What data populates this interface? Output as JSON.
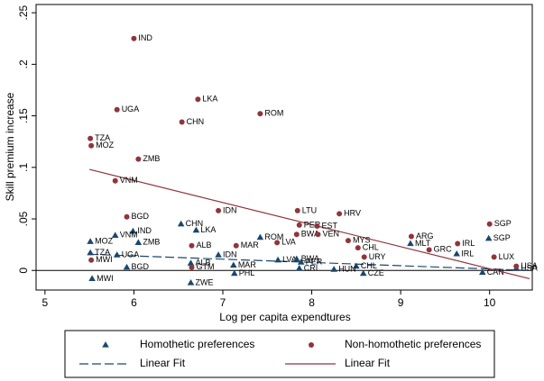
{
  "chart_data": {
    "type": "scatter",
    "x_label": "Log per capita expendtures",
    "y_label": "Skill premium increase",
    "xlim": [
      4.9,
      10.48
    ],
    "ylim": [
      -0.019,
      0.258
    ],
    "xticks": [
      5,
      6,
      7,
      8,
      9,
      10
    ],
    "yticks": [
      0,
      {
        "value": 0.05,
        "label": ".05"
      },
      {
        "value": 0.1,
        "label": ".1"
      },
      {
        "value": 0.15,
        "label": ".15"
      },
      {
        "value": 0.2,
        "label": ".2"
      },
      {
        "value": 0.25,
        "label": ".25"
      }
    ],
    "grid": false,
    "series": [
      {
        "name": "Homothetic preferences",
        "color": "#1a476f",
        "marker": "triangle",
        "x": [
          6.53,
          6.7,
          5.99,
          5.79,
          7.42,
          9.99,
          5.51,
          6.05,
          9.11,
          5.51,
          9.63,
          5.81,
          6.95,
          7.62,
          7.83,
          7.88,
          6.64,
          7.12,
          8.5,
          5.92,
          7.86,
          8.25,
          7.13,
          8.58,
          9.92,
          5.53,
          6.64,
          10.3
        ],
        "values": [
          0.045,
          0.039,
          0.038,
          0.034,
          0.032,
          0.031,
          0.028,
          0.027,
          0.026,
          0.017,
          0.016,
          0.015,
          0.015,
          0.01,
          0.011,
          0.008,
          0.007,
          0.005,
          0.004,
          0.003,
          0.002,
          0.001,
          -0.003,
          -0.003,
          -0.002,
          -0.008,
          -0.012,
          0.002
        ],
        "point_labels": [
          "CHN",
          "LKA",
          "IND",
          "VNM",
          "ROM",
          "SGP",
          "MOZ",
          "ZMB",
          "MLT",
          "TZA",
          "IRL",
          "UGA",
          "IDN",
          "LVA",
          "BWA",
          "PER",
          "ALB",
          "MAR",
          "CHL",
          "BGD",
          "CRI",
          "HUN",
          "PHL",
          "CZE",
          "CAN",
          "MWI",
          "ZWE",
          "USA"
        ],
        "fit": {
          "name": "Linear Fit",
          "dash": true,
          "x": [
            5.5,
            10.45
          ],
          "values": [
            0.0157,
            0.0
          ]
        }
      },
      {
        "name": "Non-homothetic preferences",
        "color": "#90353b",
        "marker": "circle",
        "x": [
          6.0,
          6.72,
          5.81,
          7.42,
          6.54,
          5.51,
          5.52,
          6.05,
          5.79,
          6.95,
          7.84,
          8.31,
          5.92,
          10.0,
          7.86,
          8.06,
          7.83,
          8.07,
          9.12,
          7.61,
          8.41,
          9.64,
          6.65,
          7.15,
          8.52,
          9.32,
          8.59,
          10.05,
          5.52,
          6.65,
          10.3
        ],
        "values": [
          0.225,
          0.166,
          0.156,
          0.152,
          0.144,
          0.128,
          0.121,
          0.108,
          0.087,
          0.058,
          0.058,
          0.055,
          0.052,
          0.045,
          0.044,
          0.043,
          0.035,
          0.035,
          0.033,
          0.027,
          0.029,
          0.026,
          0.024,
          0.024,
          0.022,
          0.02,
          0.013,
          0.013,
          0.01,
          0.003,
          0.004
        ],
        "point_labels": [
          "IND",
          "LKA",
          "UGA",
          "ROM",
          "CHN",
          "TZA",
          "MOZ",
          "ZMB",
          "VNM",
          "IDN",
          "LTU",
          "HRV",
          "BGD",
          "SGP",
          "PER",
          "EST",
          "BWA",
          "VEN",
          "ARG",
          "LVA",
          "MYS",
          "IRL",
          "ALB",
          "MAR",
          "CHL",
          "GRC",
          "URY",
          "LUX",
          "MWI",
          "GTM",
          "USA"
        ],
        "fit": {
          "name": "Linear Fit",
          "dash": false,
          "x": [
            5.5,
            10.45
          ],
          "values": [
            0.098,
            -0.008
          ]
        }
      }
    ]
  }
}
